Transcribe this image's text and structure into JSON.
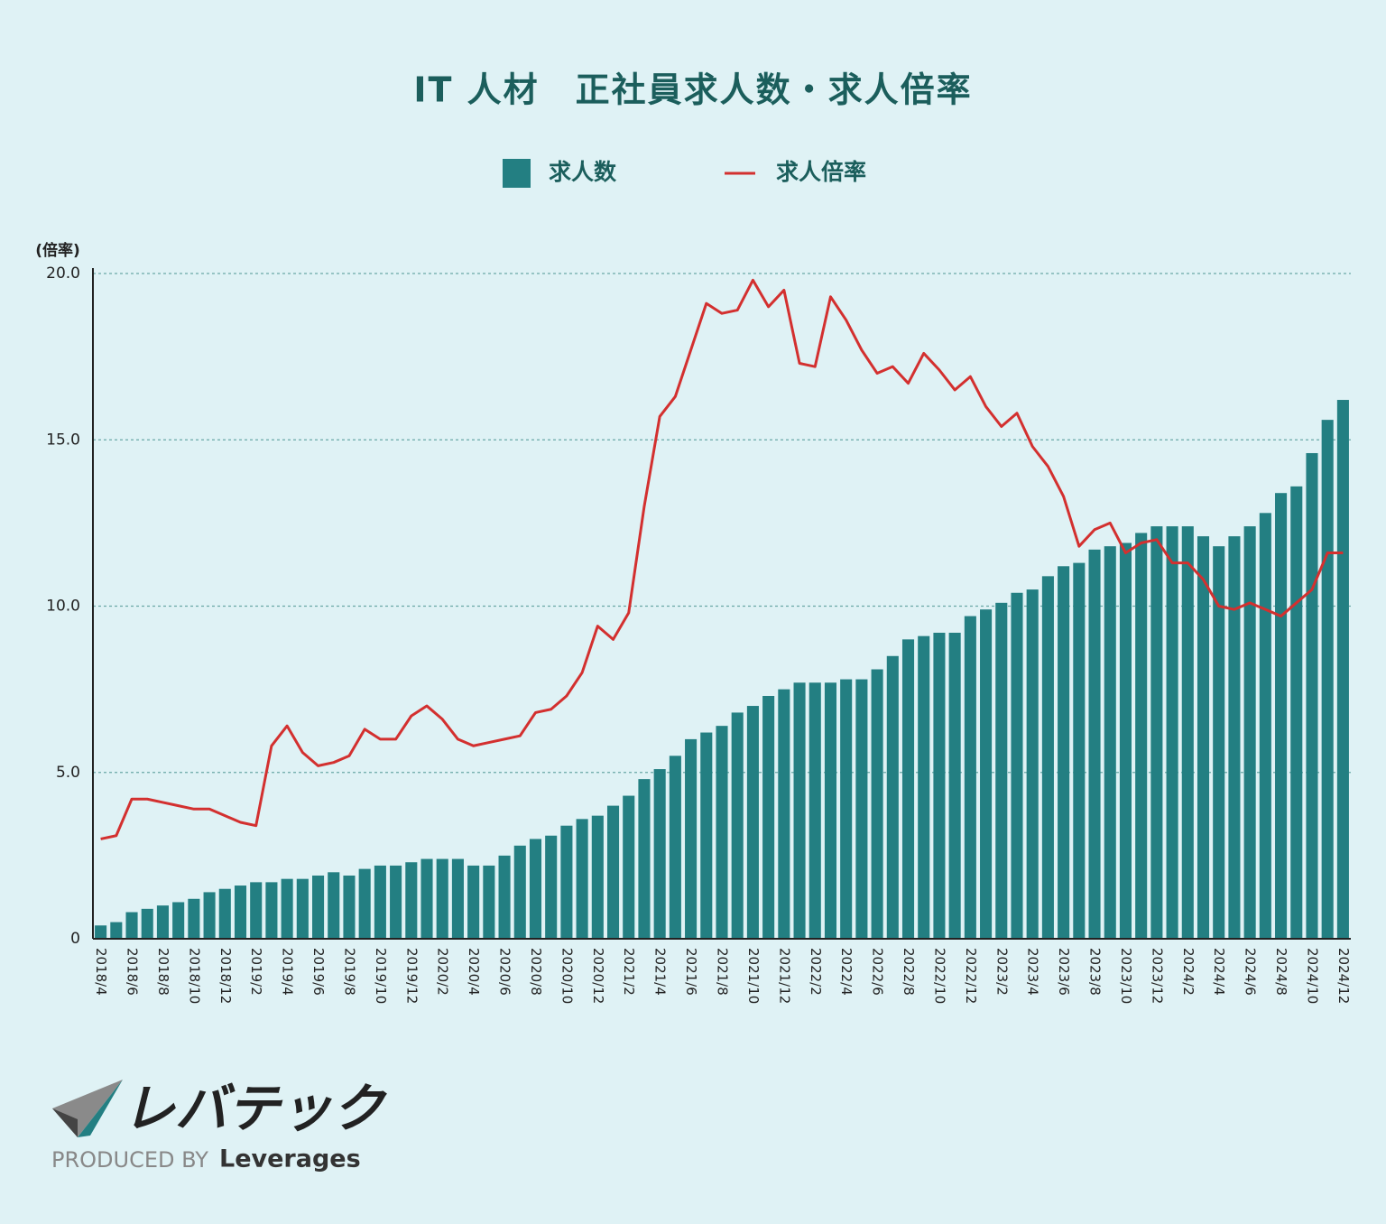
{
  "chart_data": {
    "type": "combo",
    "title": "IT 人材　正社員求人数・求人倍率",
    "y_axis_label": "(倍率)",
    "categories": [
      "2018/4",
      null,
      "2018/6",
      null,
      "2018/8",
      null,
      "2018/10",
      null,
      "2018/12",
      null,
      "2019/2",
      null,
      "2019/4",
      null,
      "2019/6",
      null,
      "2019/8",
      null,
      "2019/10",
      null,
      "2019/12",
      null,
      "2020/2",
      null,
      "2020/4",
      null,
      "2020/6",
      null,
      "2020/8",
      null,
      "2020/10",
      null,
      "2020/12",
      null,
      "2021/2",
      null,
      "2021/4",
      null,
      "2021/6",
      null,
      "2021/8",
      null,
      "2021/10",
      null,
      "2021/12",
      null,
      "2022/2",
      null,
      "2022/4",
      null,
      "2022/6",
      null,
      "2022/8",
      null,
      "2022/10",
      null,
      "2022/12",
      null,
      "2023/2",
      null,
      "2023/4",
      null,
      "2023/6",
      null,
      "2023/8",
      null,
      "2023/10",
      null,
      "2023/12",
      null,
      "2024/2",
      null,
      "2024/4",
      null,
      "2024/6",
      null,
      "2024/8",
      null,
      "2024/10",
      null,
      "2024/12"
    ],
    "series": [
      {
        "name": "求人数",
        "type": "bar",
        "color": "#237f82",
        "values": [
          0.4,
          0.5,
          0.8,
          0.9,
          1.0,
          1.1,
          1.2,
          1.4,
          1.5,
          1.6,
          1.7,
          1.7,
          1.8,
          1.8,
          1.9,
          2.0,
          1.9,
          2.1,
          2.2,
          2.2,
          2.3,
          2.4,
          2.4,
          2.4,
          2.2,
          2.2,
          2.5,
          2.8,
          3.0,
          3.1,
          3.4,
          3.6,
          3.7,
          4.0,
          4.3,
          4.8,
          5.1,
          5.5,
          6.0,
          6.2,
          6.4,
          6.8,
          7.0,
          7.3,
          7.5,
          7.7,
          7.7,
          7.7,
          7.8,
          7.8,
          8.1,
          8.5,
          9.0,
          9.1,
          9.2,
          9.2,
          9.7,
          9.9,
          10.1,
          10.4,
          10.5,
          10.9,
          11.2,
          11.3,
          11.7,
          11.8,
          11.9,
          12.2,
          12.4,
          12.4,
          12.4,
          12.1,
          11.8,
          12.1,
          12.4,
          12.8,
          13.4,
          13.6,
          14.6,
          15.6,
          16.2
        ]
      },
      {
        "name": "求人倍率",
        "type": "line",
        "color": "#d3302f",
        "values": [
          3.0,
          3.1,
          4.2,
          4.2,
          4.1,
          4.0,
          3.9,
          3.9,
          3.7,
          3.5,
          3.4,
          5.8,
          6.4,
          5.6,
          5.2,
          5.3,
          5.5,
          6.3,
          6.0,
          6.0,
          6.7,
          7.0,
          6.6,
          6.0,
          5.8,
          5.9,
          6.0,
          6.1,
          6.8,
          6.9,
          7.3,
          8.0,
          9.4,
          9.0,
          9.8,
          13.0,
          15.7,
          16.3,
          17.7,
          19.1,
          18.8,
          18.9,
          19.8,
          19.0,
          19.5,
          17.3,
          17.2,
          19.3,
          18.6,
          17.7,
          17.0,
          17.2,
          16.7,
          17.6,
          17.1,
          16.5,
          16.9,
          16.0,
          15.4,
          15.8,
          14.8,
          14.2,
          13.3,
          11.8,
          12.3,
          12.5,
          11.6,
          11.9,
          12.0,
          11.3,
          11.3,
          10.8,
          10.0,
          9.9,
          10.1,
          9.9,
          9.7,
          10.1,
          10.5,
          11.6,
          11.6
        ]
      }
    ],
    "ylim": [
      0,
      20
    ],
    "yticks": [
      0,
      {
        "value": 5,
        "label": "5.0"
      },
      {
        "value": 10,
        "label": "10.0"
      },
      {
        "value": 15,
        "label": "15.0"
      },
      {
        "value": 20,
        "label": "20.0"
      }
    ],
    "grid": true
  },
  "logo": {
    "name": "レバテック",
    "produced_by": "PRODUCED BY",
    "brand": "Leverages"
  }
}
